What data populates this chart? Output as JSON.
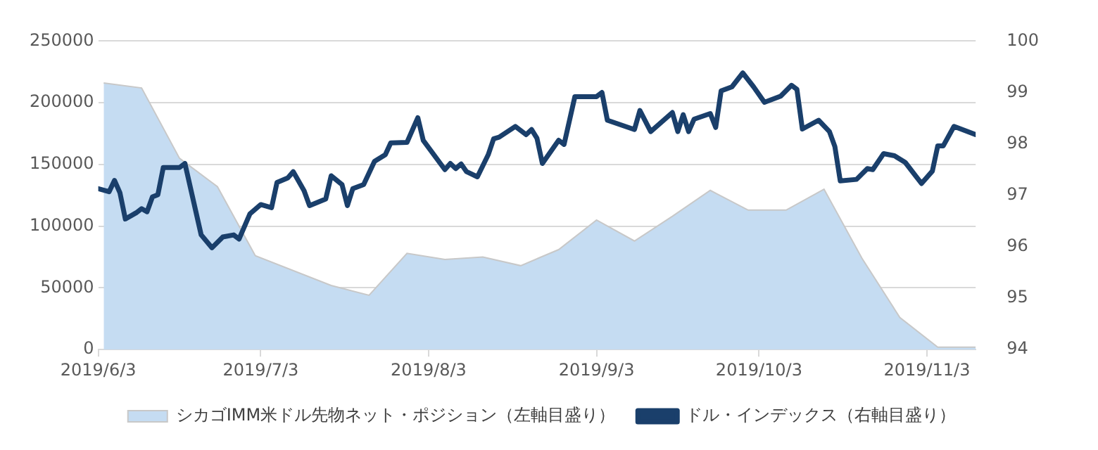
{
  "chart_data": {
    "type": "area",
    "xlim": [
      "2019-06-03",
      "2019-11-12"
    ],
    "xticks": [
      {
        "value": "2019-06-03",
        "label": "2019/6/3"
      },
      {
        "value": "2019-07-03",
        "label": "2019/7/3"
      },
      {
        "value": "2019-08-03",
        "label": "2019/8/3"
      },
      {
        "value": "2019-09-03",
        "label": "2019/9/3"
      },
      {
        "value": "2019-10-03",
        "label": "2019/10/3"
      },
      {
        "value": "2019-11-03",
        "label": "2019/11/3"
      }
    ],
    "ylim": [
      0,
      250000
    ],
    "yticks": [
      0,
      50000,
      100000,
      150000,
      200000,
      250000
    ],
    "y2lim": [
      94,
      100
    ],
    "y2ticks": [
      94,
      95,
      96,
      97,
      98,
      99,
      100
    ],
    "grid": "y",
    "legend": "bottom",
    "series": [
      {
        "name": "シカゴIMM米ドル先物ネット・ポジション（左軸目盛り）",
        "color": "#c5dcf2",
        "x": [
          "2019-06-04",
          "2019-06-11",
          "2019-06-18",
          "2019-06-25",
          "2019-07-02",
          "2019-07-16",
          "2019-07-23",
          "2019-07-30",
          "2019-08-06",
          "2019-08-13",
          "2019-08-20",
          "2019-08-27",
          "2019-09-03",
          "2019-09-10",
          "2019-09-17",
          "2019-09-24",
          "2019-10-01",
          "2019-10-08",
          "2019-10-15",
          "2019-10-22",
          "2019-10-29",
          "2019-11-05",
          "2019-11-12"
        ],
        "values": [
          216000,
          212000,
          155000,
          132000,
          76000,
          52000,
          44000,
          78000,
          73000,
          75000,
          68000,
          81000,
          105000,
          88000,
          108000,
          129000,
          113000,
          113000,
          130000,
          74000,
          26000,
          2000,
          2000
        ]
      },
      {
        "name": "ドル・インデックス（右軸目盛り）",
        "type": "line",
        "axis": "y2",
        "color": "#1a3f6b",
        "x": [
          "2019-06-03",
          "2019-06-05",
          "2019-06-06",
          "2019-06-07",
          "2019-06-08",
          "2019-06-10",
          "2019-06-11",
          "2019-06-12",
          "2019-06-13",
          "2019-06-14",
          "2019-06-15",
          "2019-06-18",
          "2019-06-19",
          "2019-06-22",
          "2019-06-24",
          "2019-06-26",
          "2019-06-28",
          "2019-06-29",
          "2019-07-01",
          "2019-07-03",
          "2019-07-05",
          "2019-07-06",
          "2019-07-08",
          "2019-07-09",
          "2019-07-11",
          "2019-07-12",
          "2019-07-15",
          "2019-07-16",
          "2019-07-18",
          "2019-07-19",
          "2019-07-20",
          "2019-07-22",
          "2019-07-24",
          "2019-07-26",
          "2019-07-27",
          "2019-07-30",
          "2019-08-01",
          "2019-08-02",
          "2019-08-06",
          "2019-08-07",
          "2019-08-08",
          "2019-08-09",
          "2019-08-10",
          "2019-08-12",
          "2019-08-14",
          "2019-08-15",
          "2019-08-16",
          "2019-08-19",
          "2019-08-21",
          "2019-08-22",
          "2019-08-23",
          "2019-08-24",
          "2019-08-27",
          "2019-08-28",
          "2019-08-30",
          "2019-09-03",
          "2019-09-04",
          "2019-09-05",
          "2019-09-10",
          "2019-09-11",
          "2019-09-13",
          "2019-09-17",
          "2019-09-18",
          "2019-09-19",
          "2019-09-20",
          "2019-09-21",
          "2019-09-24",
          "2019-09-25",
          "2019-09-26",
          "2019-09-28",
          "2019-09-30",
          "2019-10-02",
          "2019-10-04",
          "2019-10-07",
          "2019-10-09",
          "2019-10-10",
          "2019-10-11",
          "2019-10-14",
          "2019-10-16",
          "2019-10-17",
          "2019-10-18",
          "2019-10-21",
          "2019-10-23",
          "2019-10-24",
          "2019-10-26",
          "2019-10-28",
          "2019-10-30",
          "2019-11-02",
          "2019-11-04",
          "2019-11-05",
          "2019-11-06",
          "2019-11-08",
          "2019-11-12"
        ],
        "values": [
          97.13,
          97.07,
          97.29,
          97.05,
          96.54,
          96.66,
          96.74,
          96.68,
          96.97,
          97.01,
          97.54,
          97.54,
          97.62,
          96.23,
          95.98,
          96.19,
          96.23,
          96.15,
          96.64,
          96.82,
          96.76,
          97.25,
          97.34,
          97.46,
          97.09,
          96.8,
          96.93,
          97.38,
          97.21,
          96.8,
          97.13,
          97.21,
          97.66,
          97.79,
          98.02,
          98.03,
          98.51,
          98.07,
          97.5,
          97.62,
          97.52,
          97.61,
          97.46,
          97.36,
          97.79,
          98.1,
          98.13,
          98.34,
          98.18,
          98.28,
          98.11,
          97.62,
          98.07,
          97.99,
          98.92,
          98.92,
          99.0,
          98.46,
          98.28,
          98.65,
          98.24,
          98.61,
          98.24,
          98.57,
          98.24,
          98.48,
          98.59,
          98.32,
          99.03,
          99.11,
          99.38,
          99.11,
          98.81,
          98.93,
          99.14,
          99.06,
          98.29,
          98.46,
          98.24,
          97.95,
          97.28,
          97.31,
          97.52,
          97.5,
          97.81,
          97.77,
          97.64,
          97.23,
          97.47,
          97.96,
          97.96,
          98.34,
          98.18
        ]
      }
    ]
  }
}
